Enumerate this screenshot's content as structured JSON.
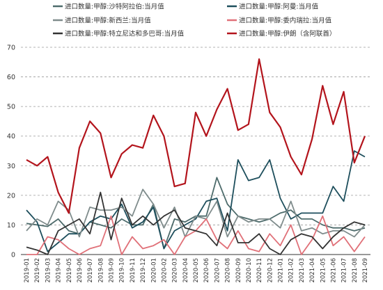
{
  "chart_data": {
    "type": "line",
    "title": "",
    "xlabel": "",
    "ylabel": "",
    "ylim": [
      0,
      70
    ],
    "yticks": [
      0,
      10,
      20,
      30,
      40,
      50,
      60,
      70
    ],
    "grid": "horizontal-dashed",
    "legend_position": "top",
    "categories": [
      "2019-01",
      "2019-02",
      "2019-03",
      "2019-04",
      "2019-05",
      "2019-06",
      "2019-07",
      "2019-08",
      "2019-09",
      "2019-10",
      "2019-11",
      "2019-12",
      "2020-01",
      "2020-02",
      "2020-03",
      "2020-04",
      "2020-05",
      "2020-06",
      "2020-07",
      "2020-08",
      "2020-09",
      "2020-10",
      "2020-11",
      "2020-12",
      "2021-01",
      "2021-02",
      "2021-03",
      "2021-04",
      "2021-05",
      "2021-06",
      "2021-07",
      "2021-08",
      "2021-09"
    ],
    "series": [
      {
        "name": "进口数量:甲醇:沙特阿拉伯:当月值",
        "color": "#4d6b6b",
        "values": [
          10.5,
          10,
          9.5,
          12,
          8,
          7,
          11,
          10,
          9,
          12,
          10,
          10,
          17,
          2,
          12,
          11,
          13,
          13,
          26,
          17,
          13,
          12,
          11,
          12,
          14,
          15,
          12,
          12,
          10,
          9,
          9,
          8,
          9
        ]
      },
      {
        "name": "进口数量:甲醇:阿曼:当月值",
        "color": "#1d4e5c",
        "values": [
          15,
          11,
          1,
          4,
          7,
          7,
          11,
          13,
          12,
          17,
          9,
          11,
          16,
          2,
          8,
          10,
          12,
          18,
          19,
          8,
          32,
          25,
          26,
          32,
          19,
          12,
          14,
          14,
          14,
          23,
          18,
          35,
          33
        ]
      },
      {
        "name": "进口数量:甲醇:新西兰:当月值",
        "color": "#7f8c8c",
        "values": [
          8,
          12,
          10,
          18,
          15,
          6,
          16,
          15,
          15,
          16,
          13,
          22,
          17,
          9,
          16,
          6,
          13,
          12,
          18,
          6,
          13,
          11,
          12,
          12,
          9,
          18,
          8,
          9,
          7,
          8,
          8,
          6,
          10
        ]
      },
      {
        "name": "进口数量:甲醇:委内瑞拉:当月值",
        "color": "#e07078",
        "values": [
          0,
          0,
          6,
          5,
          2,
          0,
          2,
          3,
          13,
          0,
          6,
          2,
          3,
          5,
          0,
          6,
          8,
          12,
          5,
          2,
          8,
          2,
          1,
          7,
          3,
          10,
          0,
          5,
          13,
          3,
          6,
          1,
          6
        ]
      },
      {
        "name": "进口数量:甲醇:特立尼达和多巴哥:当月值",
        "color": "#333333",
        "values": [
          2.5,
          1.5,
          0,
          8,
          10,
          12,
          7,
          21,
          5,
          19,
          10,
          13,
          10,
          13,
          15,
          9,
          8,
          7,
          3,
          14,
          4,
          4,
          7,
          2,
          0,
          5,
          7,
          6,
          2,
          6,
          9,
          11,
          10
        ]
      },
      {
        "name": "进口数量:甲醇:伊朗（含阿联酋）",
        "color": "#b3141c",
        "values": [
          32,
          30,
          33,
          21,
          14,
          36,
          45,
          41,
          26,
          34,
          37,
          36,
          47,
          40,
          23,
          24,
          48,
          40,
          49,
          56,
          42,
          44,
          66,
          48,
          43,
          33,
          27,
          39,
          57,
          44,
          55,
          31,
          40
        ]
      }
    ]
  },
  "last_point_overrides": {
    "comment_free_zone": true
  }
}
